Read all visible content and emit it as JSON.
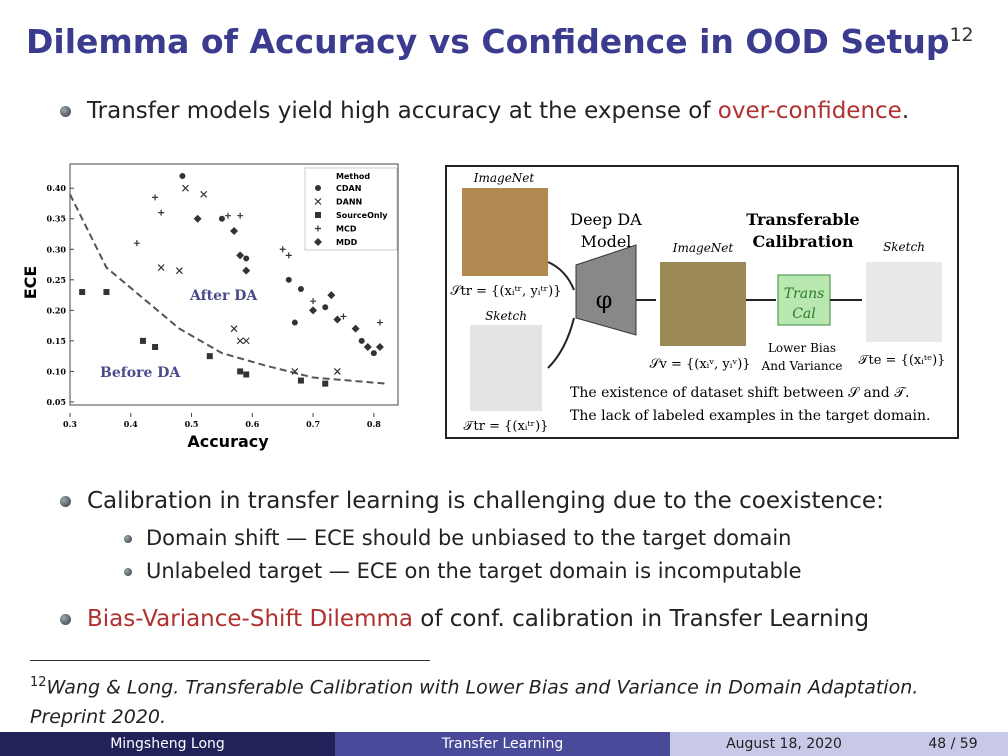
{
  "header": {
    "title": "Dilemma of Accuracy vs Confidence in OOD Setup",
    "footnote_mark": "12"
  },
  "bullets": [
    {
      "parts": [
        {
          "text": "Transfer models yield high accuracy at the expense of "
        },
        {
          "text": "over-confidence",
          "highlight": true
        },
        {
          "text": "."
        }
      ]
    },
    {
      "parts": [
        {
          "text": "Calibration in transfer learning is challenging due to the coexistence:"
        }
      ],
      "sub": [
        "Domain shift — ECE should be unbiased to the target domain",
        "Unlabeled target — ECE on the target domain is incomputable"
      ]
    },
    {
      "parts": [
        {
          "text": "Bias-Variance-Shift Dilemma",
          "highlight": true
        },
        {
          "text": " of conf. calibration in Transfer Learning"
        }
      ]
    }
  ],
  "chart_data": {
    "type": "scatter",
    "x_label": "Accuracy",
    "y_label": "ECE",
    "legend_title": "Method",
    "xlim": [
      0.3,
      0.82
    ],
    "ylim": [
      0.045,
      0.42
    ],
    "xticks": [
      0.3,
      0.4,
      0.5,
      0.6,
      0.7,
      0.8
    ],
    "yticks": [
      0.05,
      {
        "value": 0.1,
        "label": "0.10"
      },
      0.15,
      {
        "value": 0.2,
        "label": "0.20"
      },
      0.25,
      {
        "value": 0.3,
        "label": "0.30"
      },
      0.35,
      {
        "value": 0.4,
        "label": "0.40"
      }
    ],
    "annotations": [
      "After DA",
      "Before DA"
    ],
    "color": "#333333",
    "series": [
      {
        "name": "CDAN",
        "marker": "circle",
        "x": [
          0.485,
          0.55,
          0.59,
          0.66,
          0.68,
          0.72,
          0.78,
          0.8,
          0.67
        ],
        "y": [
          0.42,
          0.35,
          0.285,
          0.25,
          0.235,
          0.205,
          0.15,
          0.13,
          0.18
        ]
      },
      {
        "name": "DANN",
        "marker": "x",
        "x": [
          0.45,
          0.48,
          0.49,
          0.58,
          0.59,
          0.67,
          0.57,
          0.74,
          0.52
        ],
        "y": [
          0.27,
          0.265,
          0.4,
          0.15,
          0.15,
          0.1,
          0.17,
          0.1,
          0.39
        ]
      },
      {
        "name": "SourceOnly",
        "marker": "square",
        "x": [
          0.32,
          0.36,
          0.42,
          0.44,
          0.53,
          0.58,
          0.59,
          0.68,
          0.72
        ],
        "y": [
          0.23,
          0.23,
          0.15,
          0.14,
          0.125,
          0.1,
          0.095,
          0.085,
          0.08
        ]
      },
      {
        "name": "MCD",
        "marker": "plus",
        "x": [
          0.44,
          0.45,
          0.41,
          0.56,
          0.58,
          0.65,
          0.66,
          0.7,
          0.75,
          0.81
        ],
        "y": [
          0.385,
          0.36,
          0.31,
          0.355,
          0.355,
          0.3,
          0.29,
          0.215,
          0.19,
          0.18
        ]
      },
      {
        "name": "MDD",
        "marker": "diamond",
        "x": [
          0.51,
          0.57,
          0.58,
          0.59,
          0.7,
          0.74,
          0.73,
          0.79,
          0.77,
          0.81
        ],
        "y": [
          0.35,
          0.33,
          0.29,
          0.265,
          0.2,
          0.185,
          0.225,
          0.14,
          0.17,
          0.14
        ]
      }
    ],
    "curve": {
      "x": [
        0.3,
        0.36,
        0.42,
        0.48,
        0.55,
        0.62,
        0.7,
        0.82
      ],
      "y": [
        0.39,
        0.27,
        0.22,
        0.17,
        0.13,
        0.11,
        0.09,
        0.08
      ]
    }
  },
  "diagram": {
    "source_image_label": "ImageNet",
    "source_set": "𝒮tr = {(xᵢᵗʳ, yᵢᵗʳ)}",
    "target_image_label": "Sketch",
    "target_set": "𝒯tr = {(xᵢᵗʳ)}",
    "model_label": [
      "Deep DA",
      "Model"
    ],
    "feature_symbol": "φ",
    "validation_image_label": "ImageNet",
    "validation_set": "𝒮v = {(xᵢᵛ, yᵢᵛ)}",
    "calibration_label": [
      "Transferable",
      "Calibration"
    ],
    "cal_box": [
      "Trans",
      "Cal"
    ],
    "cal_note": [
      "Lower Bias",
      "And Variance"
    ],
    "test_image_label": "Sketch",
    "test_set": "𝒯te = {(xᵢᵗᵉ)}",
    "notes": [
      "The existence of dataset shift between 𝒮 and 𝒯.",
      "The lack of labeled examples in the target domain."
    ]
  },
  "footnote": {
    "mark": "12",
    "text": "Wang & Long. Transferable Calibration with Lower Bias and Variance in Domain Adaptation. Preprint 2020."
  },
  "footer": {
    "author": "Mingsheng Long",
    "talk": "Transfer Learning",
    "date": "August 18, 2020",
    "page": "48 / 59"
  }
}
